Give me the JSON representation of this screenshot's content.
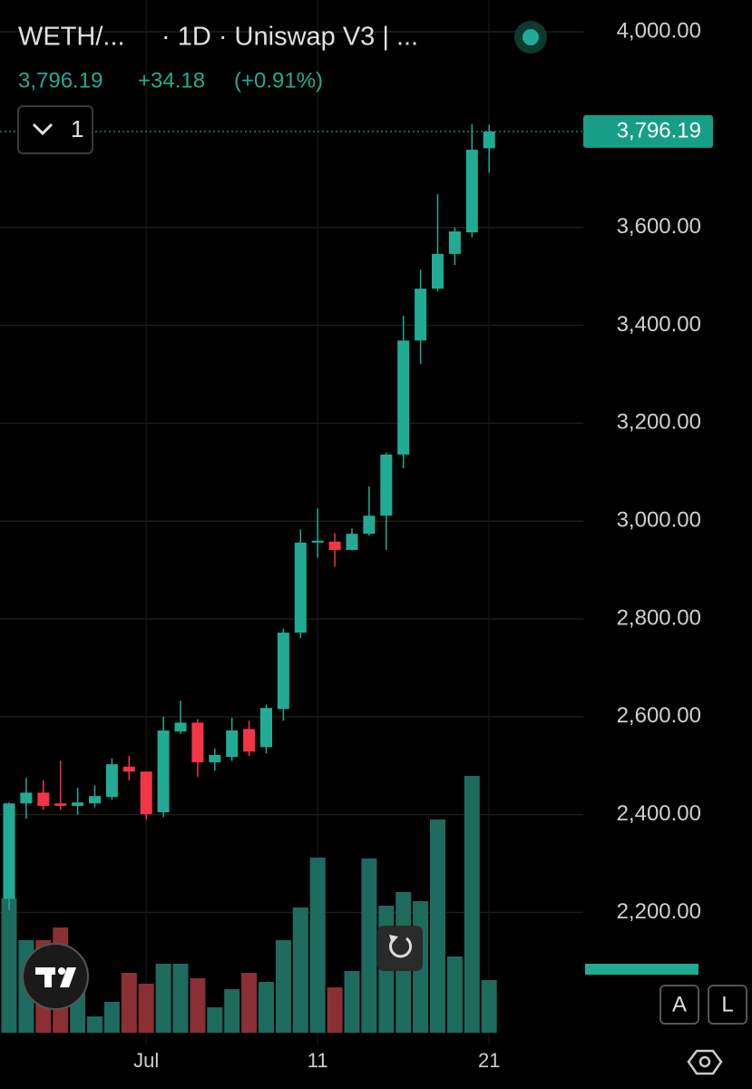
{
  "chart_data": {
    "type": "candlestick",
    "symbol": "WETH/...",
    "interval": "· 1D · Uniswap V3 | ...",
    "last_price": "3,796.19",
    "change": "+34.18",
    "change_pct": "(+0.91%)",
    "indicator_count": "1",
    "price_label": {
      "value": 3796.19,
      "label": "3,796.19"
    },
    "buttons": [
      "A",
      "L"
    ],
    "categories": [
      null,
      null,
      null,
      null,
      null,
      null,
      null,
      null,
      "Jul",
      null,
      null,
      null,
      null,
      null,
      null,
      null,
      null,
      null,
      "11",
      null,
      null,
      null,
      null,
      null,
      null,
      null,
      null,
      null,
      "21"
    ],
    "open": [
      2228,
      2423,
      2445,
      2423,
      2418,
      2423,
      2436,
      2498,
      2488,
      2405,
      2570,
      2588,
      2507,
      2518,
      2575,
      2538,
      2616,
      2772,
      2956,
      2958,
      2941,
      2974,
      3011,
      3136,
      3369,
      3475,
      3546,
      3590,
      3762
    ],
    "high": [
      2425,
      2475,
      2470,
      2510,
      2455,
      2460,
      2515,
      2520,
      2488,
      2600,
      2633,
      2595,
      2535,
      2598,
      2592,
      2625,
      2780,
      2983,
      3026,
      2975,
      2985,
      3071,
      3140,
      3420,
      3514,
      3668,
      3600,
      3811,
      3810
    ],
    "low": [
      2205,
      2392,
      2410,
      2410,
      2400,
      2415,
      2430,
      2470,
      2390,
      2395,
      2565,
      2477,
      2490,
      2510,
      2520,
      2525,
      2592,
      2761,
      2925,
      2907,
      2940,
      2970,
      2941,
      3108,
      3321,
      3470,
      3523,
      3580,
      3712
    ],
    "close": [
      2423,
      2445,
      2418,
      2418,
      2425,
      2438,
      2503,
      2488,
      2401,
      2572,
      2588,
      2507,
      2522,
      2572,
      2529,
      2618,
      2772,
      2956,
      2960,
      2941,
      2974,
      3011,
      3136,
      3369,
      3475,
      3546,
      3592,
      3759,
      3796.19
    ],
    "volume": [
      148,
      102,
      102,
      116,
      58,
      18,
      34,
      66,
      54,
      76,
      76,
      60,
      28,
      48,
      66,
      56,
      102,
      138,
      193,
      50,
      68,
      192,
      140,
      155,
      145,
      235,
      84,
      283,
      58
    ],
    "volume_ylim": [
      0,
      300
    ],
    "up_color": "#22ab94",
    "down_color": "#f23645",
    "up_volume_color": "#1d6b5e",
    "down_volume_color": "#8a3035",
    "ylim": [
      1932,
      4065
    ],
    "yticks": [
      {
        "value": 2200,
        "label": "2,200.00"
      },
      {
        "value": 2400,
        "label": "2,400.00"
      },
      {
        "value": 2600,
        "label": "2,600.00"
      },
      {
        "value": 2800,
        "label": "2,800.00"
      },
      {
        "value": 3000,
        "label": "3,000.00"
      },
      {
        "value": 3200,
        "label": "3,200.00"
      },
      {
        "value": 3400,
        "label": "3,400.00"
      },
      {
        "value": 3600,
        "label": "3,600.00"
      },
      {
        "value": 4000,
        "label": "4,000.00"
      }
    ],
    "grid": true
  }
}
